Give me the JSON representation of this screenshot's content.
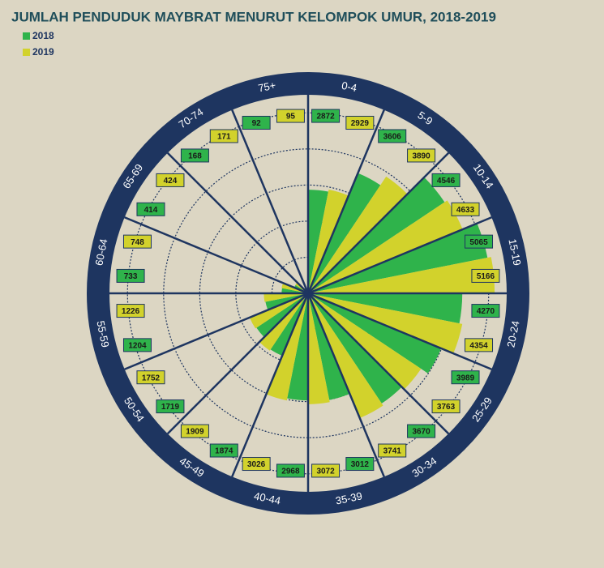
{
  "chart_data": {
    "type": "radial_bar",
    "title": "JUMLAH PENDUDUK MAYBRAT MENURUT KELOMPOK UMUR, 2018-2019",
    "categories": [
      "0-4",
      "5-9",
      "10-14",
      "15-19",
      "20-24",
      "25-29",
      "30-34",
      "35-39",
      "40-44",
      "45-49",
      "50-54",
      "55-59",
      "60-64",
      "65-69",
      "70-74",
      "75+"
    ],
    "series": [
      {
        "name": "2018",
        "color": "#2fb34b",
        "values": [
          2872,
          3606,
          4546,
          5065,
          4270,
          3989,
          3670,
          3012,
          2968,
          1874,
          1719,
          1204,
          733,
          414,
          168,
          92
        ]
      },
      {
        "name": "2019",
        "color": "#d2d22c",
        "values": [
          2929,
          3890,
          4633,
          5166,
          4354,
          3763,
          3741,
          3072,
          3026,
          1909,
          1752,
          1226,
          748,
          424,
          171,
          95
        ]
      }
    ],
    "rlim": [
      0,
      5500
    ],
    "rticks": [
      1000,
      2000,
      3000,
      4000,
      5000
    ],
    "grid": true,
    "legend": "top-left"
  }
}
